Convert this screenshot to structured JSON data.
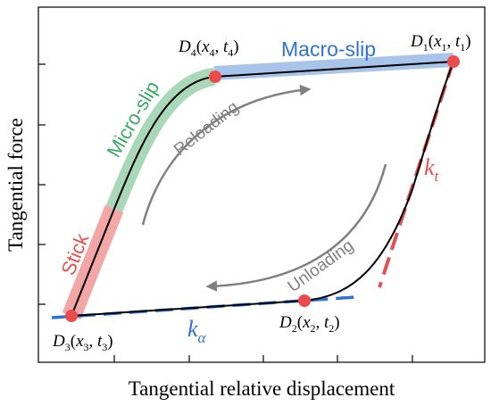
{
  "axes": {
    "x_label": "Tangential relative displacement",
    "y_label": "Tangential force"
  },
  "regions": {
    "stick": "Stick",
    "micro_slip": "Micro-slip",
    "macro_slip": "Macro-slip"
  },
  "arrows": {
    "reloading": "Reloading",
    "unloading": "Unloading"
  },
  "stiffness": {
    "kt_main": "k",
    "kt_sub": "t",
    "ka_main": "k",
    "ka_sub": "α"
  },
  "points": {
    "d1": {
      "name": "D",
      "index": "1",
      "xsub": "1",
      "tsub": "1"
    },
    "d2": {
      "name": "D",
      "index": "2",
      "xsub": "2",
      "tsub": "2"
    },
    "d3": {
      "name": "D",
      "index": "3",
      "xsub": "3",
      "tsub": "3"
    },
    "d4": {
      "name": "D",
      "index": "4",
      "xsub": "4",
      "tsub": "4"
    }
  },
  "colors": {
    "stick": "#f2a6a6",
    "micro_slip": "#a8d8b8",
    "macro_slip": "#a9c4ea",
    "curve": "#000000",
    "point": "#ec4b4b",
    "kt_dash": "#e45050",
    "ka_dash": "#2f72d6",
    "arrow": "#808080",
    "label_stick": "#e45050",
    "label_micro": "#3aa866",
    "label_macro": "#2f72d6"
  }
}
